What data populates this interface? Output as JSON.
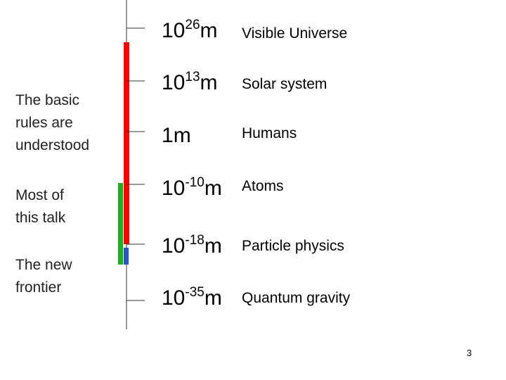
{
  "scale": [
    {
      "base": "10",
      "exponent": "26",
      "unit": "m",
      "label": "Visible Universe"
    },
    {
      "base": "10",
      "exponent": "13",
      "unit": "m",
      "label": "Solar system"
    },
    {
      "base": "1",
      "unit": "m",
      "label": "Humans"
    },
    {
      "base": "10",
      "exponent": "-10",
      "unit": "m",
      "label": "Atoms"
    },
    {
      "base": "10",
      "exponent": "-18",
      "unit": "m",
      "label": "Particle physics"
    },
    {
      "base": "10",
      "exponent": "-35",
      "unit": "m",
      "label": "Quantum gravity"
    }
  ],
  "notes": [
    {
      "lines": [
        "The basic",
        "rules are",
        "understood"
      ]
    },
    {
      "lines": [
        "Most of",
        "this talk"
      ]
    },
    {
      "lines": [
        "The new",
        "frontier"
      ]
    }
  ],
  "page_number": "3"
}
